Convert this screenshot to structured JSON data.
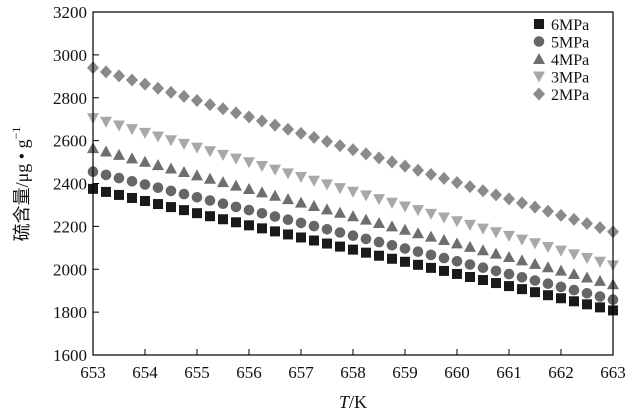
{
  "chart_data": {
    "type": "scatter",
    "xlabel_italic": "T",
    "xlabel_rest": "/K",
    "ylabel_main": "硫含量/μg • g",
    "ylabel_sup": "−1",
    "xlim": [
      653,
      663
    ],
    "ylim": [
      1600,
      3200
    ],
    "x_ticks": [
      653,
      654,
      655,
      656,
      657,
      658,
      659,
      660,
      661,
      662,
      663
    ],
    "y_ticks": [
      1600,
      1800,
      2000,
      2200,
      2400,
      2600,
      2800,
      3000,
      3200
    ],
    "grid": false,
    "legend_position": "top-right",
    "series": [
      {
        "name": "6MPa",
        "marker": "square",
        "color": "#1a1a1a",
        "start": 2375,
        "end": 1808,
        "n": 41
      },
      {
        "name": "5MPa",
        "marker": "circle",
        "color": "#666666",
        "start": 2455,
        "end": 1858,
        "n": 41
      },
      {
        "name": "4MPa",
        "marker": "triangle-up",
        "color": "#6e6e6e",
        "start": 2565,
        "end": 1930,
        "n": 41
      },
      {
        "name": "3MPa",
        "marker": "triangle-down",
        "color": "#a8a8a8",
        "start": 2705,
        "end": 2018,
        "n": 41
      },
      {
        "name": "2MPa",
        "marker": "diamond",
        "color": "#8a8a8a",
        "start": 2940,
        "end": 2175,
        "n": 41
      }
    ]
  }
}
